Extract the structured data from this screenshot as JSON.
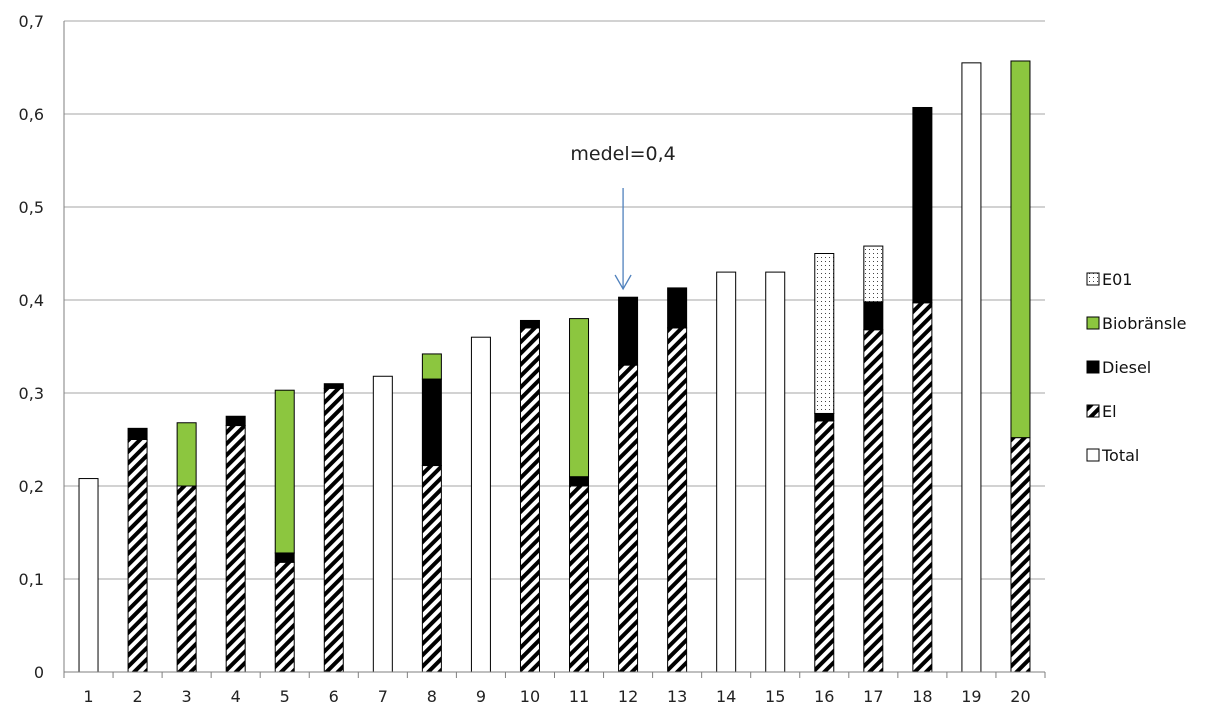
{
  "chart_data": {
    "type": "bar",
    "stacked": true,
    "categories": [
      "1",
      "2",
      "3",
      "4",
      "5",
      "6",
      "7",
      "8",
      "9",
      "10",
      "11",
      "12",
      "13",
      "14",
      "15",
      "16",
      "17",
      "18",
      "19",
      "20"
    ],
    "series": [
      {
        "name": "El",
        "pattern": "hatch",
        "color": "#000000",
        "values": [
          0,
          0.25,
          0.2,
          0.265,
          0.118,
          0.305,
          0,
          0.222,
          0,
          0.37,
          0.2,
          0.33,
          0.37,
          0,
          0,
          0.27,
          0.368,
          0.397,
          0,
          0.252
        ]
      },
      {
        "name": "Diesel",
        "pattern": "solid",
        "color": "#000000",
        "values": [
          0,
          0.012,
          0,
          0.01,
          0.01,
          0.005,
          0,
          0.093,
          0,
          0.008,
          0.01,
          0.073,
          0.043,
          0,
          0,
          0.008,
          0.03,
          0.21,
          0,
          0
        ]
      },
      {
        "name": "Biobränsle",
        "pattern": "solid",
        "color": "#8cc63f",
        "values": [
          0,
          0,
          0.068,
          0,
          0.175,
          0,
          0,
          0.027,
          0,
          0,
          0.17,
          0,
          0,
          0,
          0,
          0,
          0,
          0,
          0,
          0.405
        ]
      },
      {
        "name": "E01",
        "pattern": "dots",
        "color": "#000000",
        "values": [
          0,
          0,
          0,
          0,
          0,
          0,
          0,
          0,
          0,
          0,
          0,
          0,
          0,
          0,
          0,
          0.172,
          0.06,
          0,
          0,
          0
        ]
      },
      {
        "name": "Total",
        "pattern": "outline",
        "color": "#000000",
        "values": [
          0.208,
          0,
          0,
          0,
          0,
          0,
          0.318,
          0,
          0.36,
          0,
          0,
          0,
          0,
          0.43,
          0.43,
          0,
          0,
          0,
          0.655,
          0
        ]
      }
    ],
    "legend_order": [
      "E01",
      "Biobränsle",
      "Diesel",
      "El",
      "Total"
    ],
    "yticks": [
      "0",
      "0,1",
      "0,2",
      "0,3",
      "0,4",
      "0,5",
      "0,6",
      "0,7"
    ],
    "ylim": [
      0,
      0.7
    ],
    "grid": true,
    "legend_position": "right",
    "title": "",
    "xlabel": "",
    "ylabel": "",
    "annotation": {
      "text": "medel=0,4",
      "category": "12",
      "value": 0.4,
      "arrow_color": "#4f81bd"
    }
  }
}
